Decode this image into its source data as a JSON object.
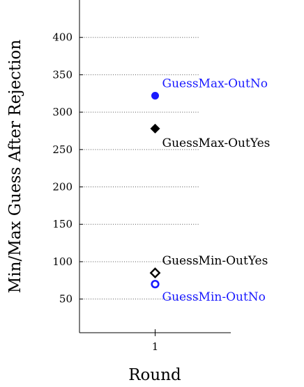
{
  "chart_data": {
    "type": "scatter",
    "title": "",
    "xlabel": "Round",
    "ylabel": "Min/Max Guess After Rejection",
    "x_ticks": [
      1
    ],
    "y_ticks": [
      50,
      100,
      150,
      200,
      250,
      300,
      350,
      400
    ],
    "xlim": [
      0.5,
      1.5
    ],
    "ylim": [
      5,
      450
    ],
    "grid": "horizontal-dotted",
    "legend": "none",
    "series": [
      {
        "name": "GuessMax-OutNo",
        "x": 1,
        "y": 322,
        "marker": "circle-filled",
        "color": "#1a1aff"
      },
      {
        "name": "GuessMax-OutYes",
        "x": 1,
        "y": 278,
        "marker": "diamond-filled",
        "color": "#000000"
      },
      {
        "name": "GuessMin-OutYes",
        "x": 1,
        "y": 85,
        "marker": "diamond-open",
        "color": "#000000"
      },
      {
        "name": "GuessMin-OutNo",
        "x": 1,
        "y": 70,
        "marker": "circle-open",
        "color": "#1a1aff"
      }
    ]
  }
}
